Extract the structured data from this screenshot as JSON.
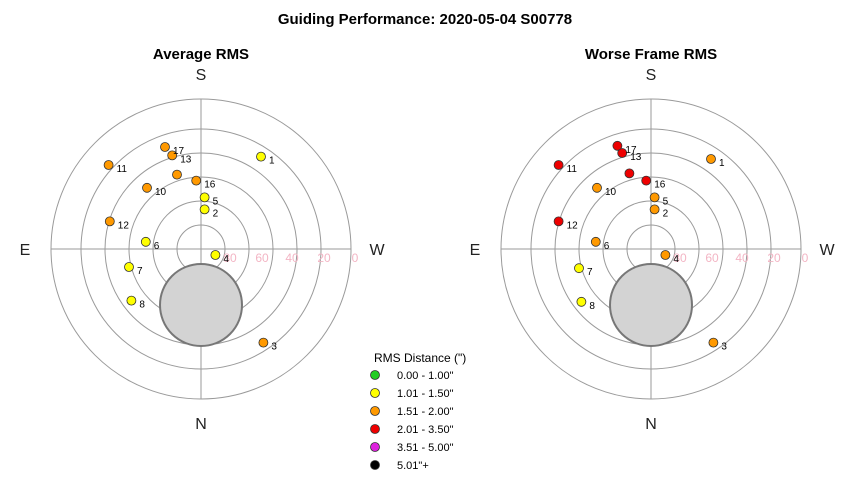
{
  "chart_data": {
    "type": "scatter",
    "coordinate_system": "polar",
    "title": "Guiding Performance: 2020-05-04 S00778",
    "directions": {
      "top": "S",
      "bottom": "N",
      "left": "E",
      "right": "W"
    },
    "radial_ticks": [
      "80",
      "60",
      "40",
      "20",
      "0"
    ],
    "legend": {
      "title": "RMS Distance (\")",
      "placement": "bottom-center",
      "items": [
        {
          "label": "0.00 - 1.00\"",
          "color": "#22cc22"
        },
        {
          "label": "1.01 - 1.50\"",
          "color": "#ffff00"
        },
        {
          "label": "1.51 - 2.00\"",
          "color": "#ff9900"
        },
        {
          "label": "2.01 - 3.50\"",
          "color": "#ee0000"
        },
        {
          "label": "3.51 - 5.00\"",
          "color": "#dd22dd"
        },
        {
          "label": "5.01\"+",
          "color": "#000000"
        }
      ]
    },
    "panels": [
      {
        "title": "Average RMS",
        "points": [
          {
            "label": "1",
            "x": 50,
            "y": 77,
            "cls": 1
          },
          {
            "label": "2",
            "x": 3,
            "y": 33,
            "cls": 1
          },
          {
            "label": "3",
            "x": 52,
            "y": -78,
            "cls": 2
          },
          {
            "label": "4",
            "x": 12,
            "y": -5,
            "cls": 1
          },
          {
            "label": "5",
            "x": 3,
            "y": 43,
            "cls": 1
          },
          {
            "label": "6",
            "x": -46,
            "y": 6,
            "cls": 1
          },
          {
            "label": "7",
            "x": -60,
            "y": -15,
            "cls": 1
          },
          {
            "label": "8",
            "x": -58,
            "y": -43,
            "cls": 1
          },
          {
            "label": "10",
            "x": -45,
            "y": 51,
            "cls": 2
          },
          {
            "label": "11",
            "x": -77,
            "y": 70,
            "cls": 2
          },
          {
            "label": "12",
            "x": -76,
            "y": 23,
            "cls": 2
          },
          {
            "label": "13",
            "x": -24,
            "y": 78,
            "cls": 2
          },
          {
            "label": "16",
            "x": -4,
            "y": 57,
            "cls": 2
          },
          {
            "label": "17",
            "x": -30,
            "y": 85,
            "cls": 2
          },
          {
            "label": "",
            "x": -20,
            "y": 62,
            "cls": 2
          }
        ]
      },
      {
        "title": "Worse Frame RMS",
        "points": [
          {
            "label": "1",
            "x": 50,
            "y": 75,
            "cls": 2
          },
          {
            "label": "2",
            "x": 3,
            "y": 33,
            "cls": 2
          },
          {
            "label": "3",
            "x": 52,
            "y": -78,
            "cls": 2
          },
          {
            "label": "4",
            "x": 12,
            "y": -5,
            "cls": 2
          },
          {
            "label": "5",
            "x": 3,
            "y": 43,
            "cls": 2
          },
          {
            "label": "6",
            "x": -46,
            "y": 6,
            "cls": 2
          },
          {
            "label": "7",
            "x": -60,
            "y": -16,
            "cls": 1
          },
          {
            "label": "8",
            "x": -58,
            "y": -44,
            "cls": 1
          },
          {
            "label": "10",
            "x": -45,
            "y": 51,
            "cls": 2
          },
          {
            "label": "11",
            "x": -77,
            "y": 70,
            "cls": 3
          },
          {
            "label": "12",
            "x": -77,
            "y": 23,
            "cls": 3
          },
          {
            "label": "13",
            "x": -24,
            "y": 80,
            "cls": 3
          },
          {
            "label": "16",
            "x": -4,
            "y": 57,
            "cls": 3
          },
          {
            "label": "17",
            "x": -28,
            "y": 86,
            "cls": 3
          },
          {
            "label": "",
            "x": -18,
            "y": 63,
            "cls": 3
          }
        ]
      }
    ]
  }
}
